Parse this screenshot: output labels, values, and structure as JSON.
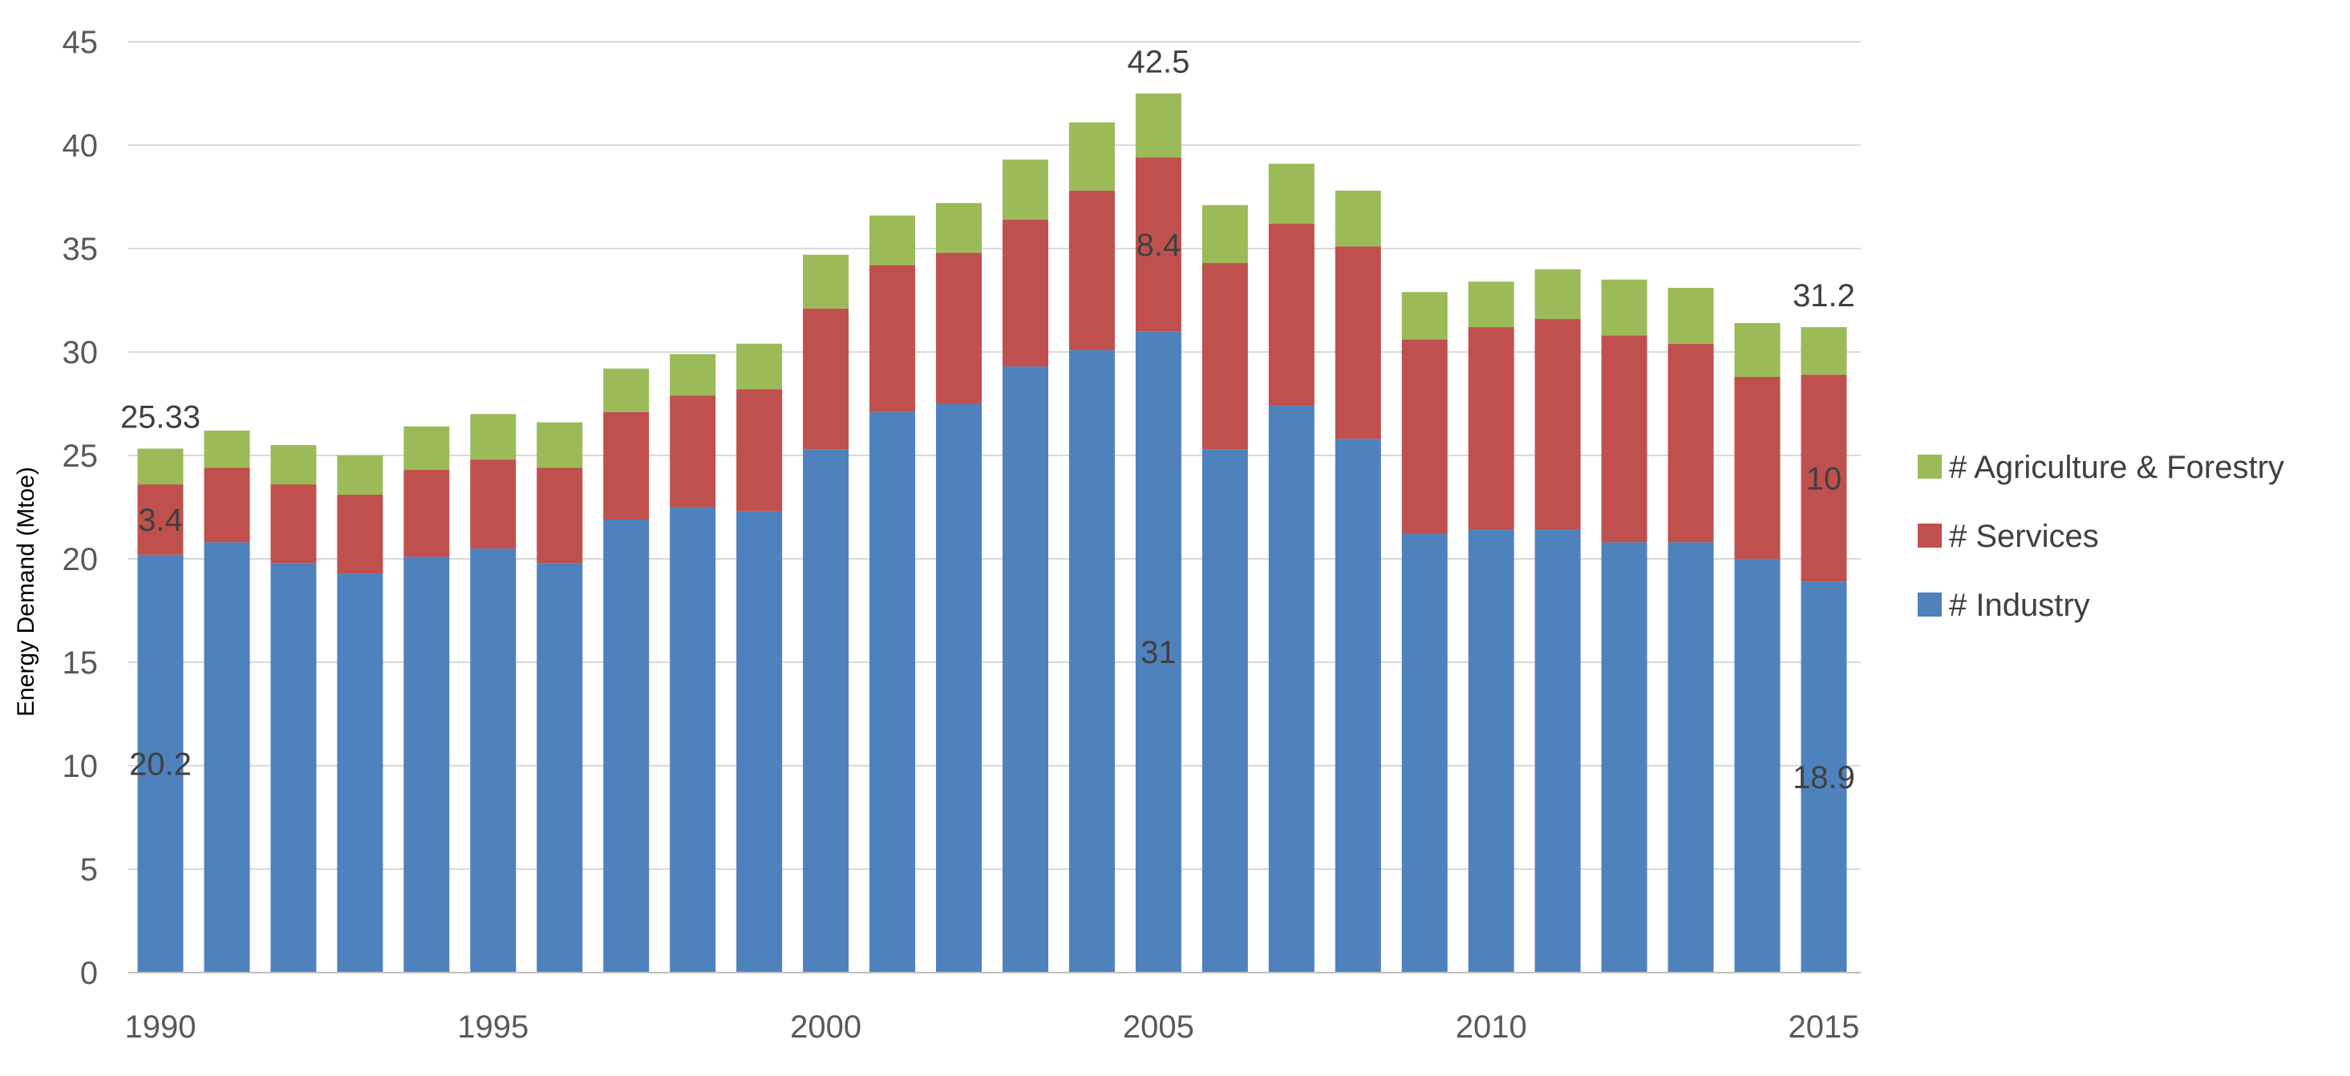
{
  "chart_data": {
    "type": "bar",
    "stacked": true,
    "title": "",
    "xlabel": "",
    "ylabel": "Energy Demand (Mtoe)",
    "ylim": [
      0,
      45
    ],
    "yticks": [
      0,
      5,
      10,
      15,
      20,
      25,
      30,
      35,
      40,
      45
    ],
    "grid": true,
    "legend_position": "right",
    "categories": [
      1990,
      1991,
      1992,
      1993,
      1994,
      1995,
      1996,
      1997,
      1998,
      1999,
      2000,
      2001,
      2002,
      2003,
      2004,
      2005,
      2006,
      2007,
      2008,
      2009,
      2010,
      2011,
      2012,
      2013,
      2014,
      2015
    ],
    "xtick_labels": [
      "1990",
      "1995",
      "2000",
      "2005",
      "2010",
      "2015"
    ],
    "series": [
      {
        "name": "# Industry",
        "color": "#4f81bd",
        "values": [
          20.2,
          20.8,
          19.8,
          19.3,
          20.1,
          20.5,
          19.8,
          21.9,
          22.5,
          22.3,
          25.3,
          27.1,
          27.5,
          29.3,
          30.1,
          31.0,
          25.3,
          27.4,
          25.8,
          21.2,
          21.4,
          21.4,
          20.8,
          20.8,
          20.0,
          18.9
        ]
      },
      {
        "name": "# Services",
        "color": "#c0504d",
        "values": [
          3.4,
          3.6,
          3.8,
          3.8,
          4.2,
          4.3,
          4.6,
          5.2,
          5.4,
          5.9,
          6.8,
          7.1,
          7.3,
          7.1,
          7.7,
          8.4,
          9.0,
          8.8,
          9.3,
          9.4,
          9.8,
          10.2,
          10.0,
          9.6,
          8.8,
          10.0
        ]
      },
      {
        "name": "# Agriculture & Forestry",
        "color": "#9bbb59",
        "values": [
          1.73,
          1.8,
          1.9,
          1.9,
          2.1,
          2.2,
          2.2,
          2.1,
          2.0,
          2.2,
          2.6,
          2.4,
          2.4,
          2.9,
          3.3,
          3.1,
          2.8,
          2.9,
          2.7,
          2.3,
          2.2,
          2.4,
          2.7,
          2.7,
          2.6,
          2.3
        ]
      }
    ],
    "annotations": [
      {
        "category": 1990,
        "series": "# Industry",
        "text": "20.2"
      },
      {
        "category": 1990,
        "series": "# Services",
        "text": "3.4"
      },
      {
        "category": 1990,
        "series": "total",
        "text": "25.33"
      },
      {
        "category": 2005,
        "series": "# Industry",
        "text": "31"
      },
      {
        "category": 2005,
        "series": "# Services",
        "text": "8.4"
      },
      {
        "category": 2005,
        "series": "total",
        "text": "42.5"
      },
      {
        "category": 2015,
        "series": "# Industry",
        "text": "18.9"
      },
      {
        "category": 2015,
        "series": "# Services",
        "text": "10"
      },
      {
        "category": 2015,
        "series": "total",
        "text": "31.2"
      }
    ]
  }
}
